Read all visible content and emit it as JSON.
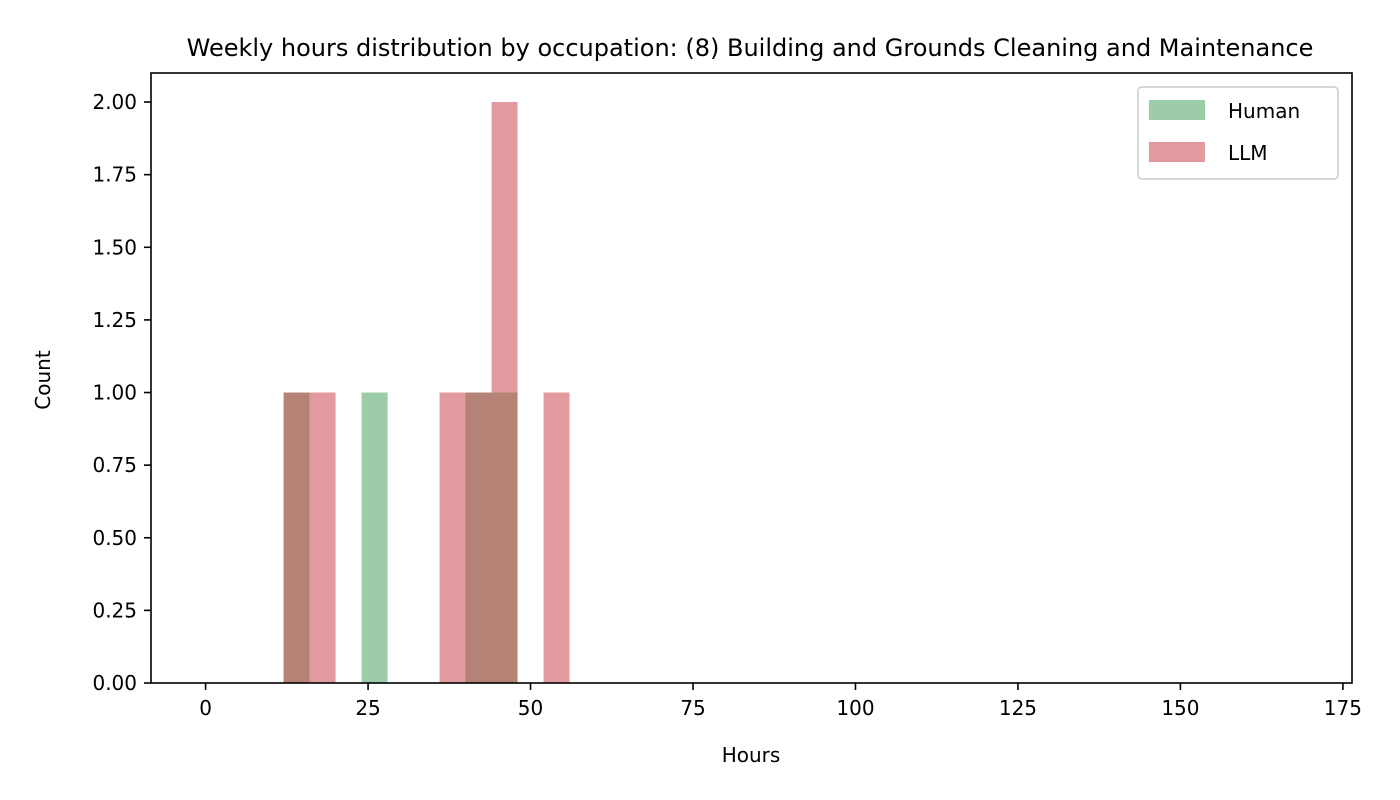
{
  "chart_data": {
    "type": "bar",
    "chart_kind": "histogram",
    "title": "Weekly hours distribution by occupation: (8) Building and Grounds Cleaning and Maintenance",
    "xlabel": "Hours",
    "ylabel": "Count",
    "xlim": [
      -8.4,
      176.4
    ],
    "ylim": [
      0,
      2.1
    ],
    "x_ticks": [
      "0",
      "25",
      "50",
      "75",
      "100",
      "125",
      "150",
      "175"
    ],
    "x_tick_values": [
      0,
      25,
      50,
      75,
      100,
      125,
      150,
      175
    ],
    "y_ticks": [
      "0.00",
      "0.25",
      "0.50",
      "0.75",
      "1.00",
      "1.25",
      "1.50",
      "1.75",
      "2.00"
    ],
    "y_tick_values": [
      0,
      0.25,
      0.5,
      0.75,
      1.0,
      1.25,
      1.5,
      1.75,
      2.0
    ],
    "legend_position": "upper right",
    "grid": false,
    "series": [
      {
        "name": "Human",
        "color": "#5aaa6e",
        "opacity": 0.6,
        "bins": [
          {
            "x0": 12,
            "x1": 16,
            "count": 1
          },
          {
            "x0": 24,
            "x1": 28,
            "count": 1
          },
          {
            "x0": 40,
            "x1": 44,
            "count": 1
          },
          {
            "x0": 44,
            "x1": 48,
            "count": 1
          }
        ]
      },
      {
        "name": "LLM",
        "color": "#c9474c",
        "opacity": 0.55,
        "bins": [
          {
            "x0": 12,
            "x1": 16,
            "count": 1
          },
          {
            "x0": 16,
            "x1": 20,
            "count": 1
          },
          {
            "x0": 36,
            "x1": 40,
            "count": 1
          },
          {
            "x0": 40,
            "x1": 44,
            "count": 1
          },
          {
            "x0": 44,
            "x1": 48,
            "count": 2
          },
          {
            "x0": 52,
            "x1": 56,
            "count": 1
          }
        ]
      }
    ]
  }
}
